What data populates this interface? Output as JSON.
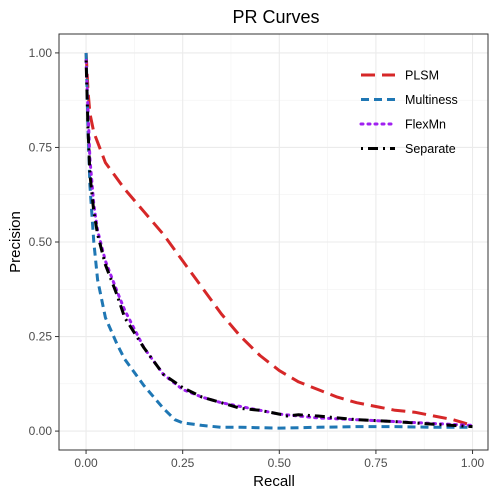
{
  "chart_data": {
    "type": "line",
    "title": "PR Curves",
    "xlabel": "Recall",
    "ylabel": "Precision",
    "xlim": [
      -0.07,
      1.04
    ],
    "ylim": [
      -0.05,
      1.05
    ],
    "xticks": [
      0,
      0.25,
      0.5,
      0.75,
      1
    ],
    "yticks": [
      0,
      0.25,
      0.5,
      0.75,
      1
    ],
    "xtick_labels": [
      "0.00",
      "0.25",
      "0.50",
      "0.75",
      "1.00"
    ],
    "ytick_labels": [
      "0.00",
      "0.25",
      "0.50",
      "0.75",
      "1.00"
    ],
    "grid": true,
    "legend_position": "top-right",
    "series": [
      {
        "name": "PLSM",
        "color": "#d62728",
        "dash": "longdash",
        "points": [
          [
            0,
            1.0
          ],
          [
            0.005,
            0.9
          ],
          [
            0.01,
            0.84
          ],
          [
            0.02,
            0.79
          ],
          [
            0.05,
            0.71
          ],
          [
            0.1,
            0.64
          ],
          [
            0.15,
            0.58
          ],
          [
            0.2,
            0.52
          ],
          [
            0.25,
            0.45
          ],
          [
            0.3,
            0.38
          ],
          [
            0.35,
            0.31
          ],
          [
            0.4,
            0.25
          ],
          [
            0.45,
            0.2
          ],
          [
            0.5,
            0.16
          ],
          [
            0.55,
            0.13
          ],
          [
            0.6,
            0.11
          ],
          [
            0.65,
            0.09
          ],
          [
            0.7,
            0.075
          ],
          [
            0.75,
            0.065
          ],
          [
            0.8,
            0.055
          ],
          [
            0.85,
            0.05
          ],
          [
            0.9,
            0.04
          ],
          [
            0.95,
            0.03
          ],
          [
            1.0,
            0.015
          ]
        ]
      },
      {
        "name": "Multiness",
        "color": "#1f77b4",
        "dash": "dashed",
        "points": [
          [
            0,
            1.0
          ],
          [
            0.005,
            0.8
          ],
          [
            0.01,
            0.65
          ],
          [
            0.02,
            0.5
          ],
          [
            0.03,
            0.4
          ],
          [
            0.05,
            0.3
          ],
          [
            0.08,
            0.23
          ],
          [
            0.1,
            0.19
          ],
          [
            0.15,
            0.12
          ],
          [
            0.2,
            0.06
          ],
          [
            0.23,
            0.03
          ],
          [
            0.25,
            0.022
          ],
          [
            0.3,
            0.015
          ],
          [
            0.35,
            0.01
          ],
          [
            0.4,
            0.01
          ],
          [
            0.5,
            0.008
          ],
          [
            0.6,
            0.01
          ],
          [
            0.7,
            0.012
          ],
          [
            0.8,
            0.012
          ],
          [
            0.9,
            0.01
          ],
          [
            1.0,
            0.01
          ]
        ]
      },
      {
        "name": "FlexMn",
        "color": "#a020f0",
        "dash": "dotted",
        "points": [
          [
            0,
            0.98
          ],
          [
            0.005,
            0.85
          ],
          [
            0.01,
            0.72
          ],
          [
            0.02,
            0.6
          ],
          [
            0.03,
            0.53
          ],
          [
            0.05,
            0.45
          ],
          [
            0.08,
            0.37
          ],
          [
            0.1,
            0.32
          ],
          [
            0.15,
            0.22
          ],
          [
            0.2,
            0.15
          ],
          [
            0.25,
            0.11
          ],
          [
            0.3,
            0.09
          ],
          [
            0.35,
            0.075
          ],
          [
            0.4,
            0.065
          ],
          [
            0.45,
            0.055
          ],
          [
            0.5,
            0.045
          ],
          [
            0.55,
            0.04
          ],
          [
            0.6,
            0.035
          ],
          [
            0.7,
            0.03
          ],
          [
            0.8,
            0.025
          ],
          [
            0.9,
            0.02
          ],
          [
            1.0,
            0.015
          ]
        ]
      },
      {
        "name": "Separate",
        "color": "#000000",
        "dash": "dotdash",
        "points": [
          [
            0,
            0.98
          ],
          [
            0.005,
            0.8
          ],
          [
            0.01,
            0.68
          ],
          [
            0.02,
            0.58
          ],
          [
            0.03,
            0.52
          ],
          [
            0.05,
            0.44
          ],
          [
            0.08,
            0.36
          ],
          [
            0.1,
            0.3
          ],
          [
            0.15,
            0.22
          ],
          [
            0.2,
            0.15
          ],
          [
            0.25,
            0.115
          ],
          [
            0.3,
            0.09
          ],
          [
            0.35,
            0.075
          ],
          [
            0.4,
            0.06
          ],
          [
            0.45,
            0.055
          ],
          [
            0.5,
            0.045
          ],
          [
            0.52,
            0.04
          ],
          [
            0.55,
            0.043
          ],
          [
            0.6,
            0.04
          ],
          [
            0.65,
            0.035
          ],
          [
            0.7,
            0.03
          ],
          [
            0.8,
            0.025
          ],
          [
            0.9,
            0.018
          ],
          [
            1.0,
            0.012
          ]
        ]
      }
    ]
  }
}
